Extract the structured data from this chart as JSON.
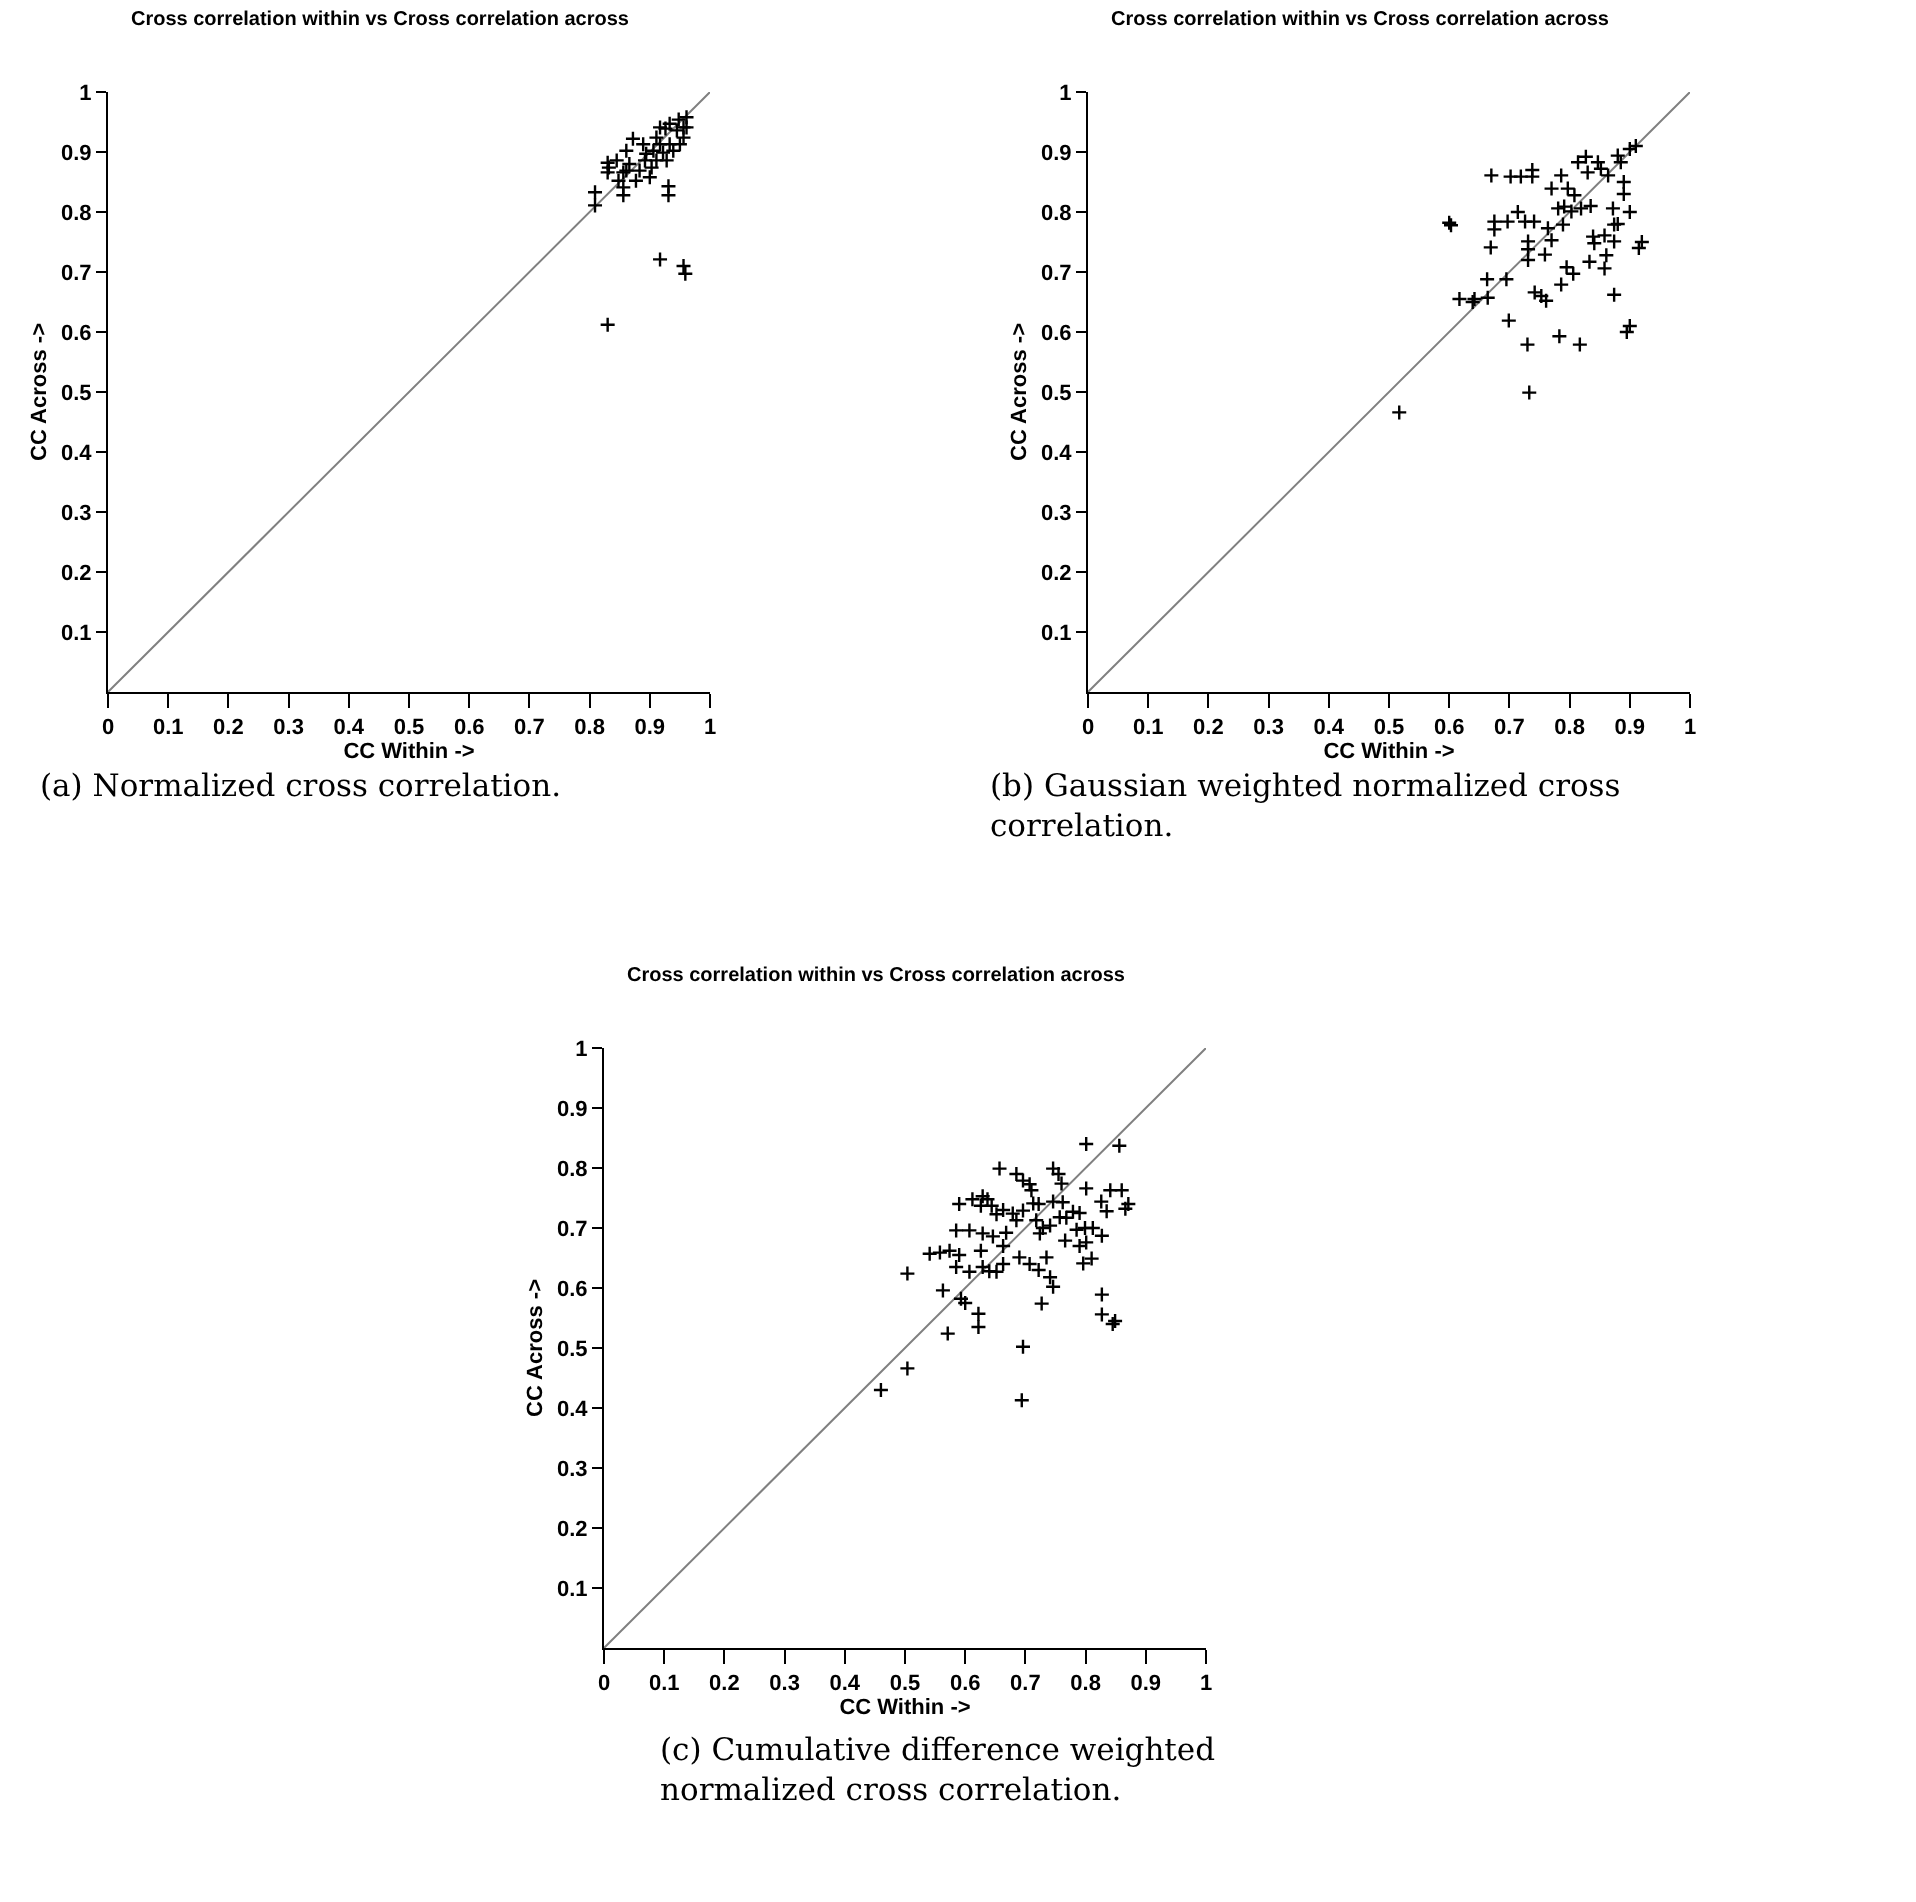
{
  "chart_data": [
    {
      "type": "scatter",
      "title": "Cross correlation within vs Cross correlation across",
      "xlabel": "CC Within ->",
      "ylabel": "CC Across ->",
      "xlim": [
        0,
        1
      ],
      "ylim": [
        0,
        1
      ],
      "xticks": [
        0,
        0.1,
        0.2,
        0.3,
        0.4,
        0.5,
        0.6,
        0.7,
        0.8,
        0.9,
        1
      ],
      "yticks": [
        0.1,
        0.2,
        0.3,
        0.4,
        0.5,
        0.6,
        0.7,
        0.8,
        0.9,
        1
      ],
      "grid": false,
      "marker": "cross",
      "annotations": [
        "(a) Normalized cross correlation."
      ],
      "series": [
        {
          "type": "scatter",
          "color": "#000000",
          "x": [
            0.809,
            0.809,
            0.83,
            0.83,
            0.832,
            0.856,
            0.856,
            0.856,
            0.83,
            0.917,
            0.956,
            0.959,
            0.931,
            0.931,
            0.861,
            0.872,
            0.889,
            0.892,
            0.9,
            0.903,
            0.911,
            0.917,
            0.926,
            0.933,
            0.948,
            0.961,
            0.956,
            0.956,
            0.939,
            0.928,
            0.877,
            0.866,
            0.883,
            0.906,
            0.945,
            0.961,
            0.894,
            0.845,
            0.933,
            0.917,
            0.911,
            0.95,
            0.922,
            0.861,
            0.848
          ],
          "values": [
            0.833,
            0.811,
            0.882,
            0.866,
            0.874,
            0.866,
            0.841,
            0.828,
            0.612,
            0.721,
            0.71,
            0.697,
            0.843,
            0.828,
            0.902,
            0.922,
            0.913,
            0.886,
            0.858,
            0.874,
            0.924,
            0.913,
            0.939,
            0.947,
            0.954,
            0.958,
            0.941,
            0.924,
            0.902,
            0.886,
            0.852,
            0.88,
            0.869,
            0.902,
            0.936,
            0.941,
            0.897,
            0.886,
            0.913,
            0.941,
            0.886,
            0.913,
            0.899,
            0.869,
            0.852
          ]
        },
        {
          "type": "line",
          "color": "#808080",
          "marker": "none",
          "x": [
            0,
            1
          ],
          "values": [
            0,
            1
          ]
        }
      ]
    },
    {
      "type": "scatter",
      "title": "Cross correlation within vs Cross correlation across",
      "xlabel": "CC Within ->",
      "ylabel": "CC Across ->",
      "xlim": [
        0,
        1
      ],
      "ylim": [
        0,
        1
      ],
      "xticks": [
        0,
        0.1,
        0.2,
        0.3,
        0.4,
        0.5,
        0.6,
        0.7,
        0.8,
        0.9,
        1
      ],
      "yticks": [
        0.1,
        0.2,
        0.3,
        0.4,
        0.5,
        0.6,
        0.7,
        0.8,
        0.9,
        1
      ],
      "grid": false,
      "marker": "cross",
      "annotations": [
        "(b) Gaussian weighted normalized cross correlation."
      ],
      "series": [
        {
          "type": "scatter",
          "color": "#000000",
          "x": [
            0.517,
            0.6,
            0.603,
            0.617,
            0.639,
            0.642,
            0.664,
            0.663,
            0.669,
            0.67,
            0.675,
            0.675,
            0.697,
            0.695,
            0.699,
            0.702,
            0.719,
            0.738,
            0.738,
            0.714,
            0.726,
            0.741,
            0.731,
            0.731,
            0.731,
            0.73,
            0.733,
            0.742,
            0.753,
            0.761,
            0.759,
            0.764,
            0.77,
            0.77,
            0.783,
            0.786,
            0.786,
            0.781,
            0.789,
            0.791,
            0.795,
            0.806,
            0.797,
            0.803,
            0.808,
            0.814,
            0.817,
            0.819,
            0.827,
            0.83,
            0.833,
            0.835,
            0.839,
            0.841,
            0.847,
            0.852,
            0.858,
            0.861,
            0.858,
            0.864,
            0.872,
            0.874,
            0.874,
            0.874,
            0.88,
            0.885,
            0.9,
            0.895,
            0.92,
            0.915,
            0.91,
            0.9,
            0.89,
            0.89,
            0.9,
            0.88
          ],
          "values": [
            0.466,
            0.782,
            0.778,
            0.655,
            0.65,
            0.655,
            0.657,
            0.688,
            0.741,
            0.861,
            0.784,
            0.771,
            0.784,
            0.688,
            0.619,
            0.859,
            0.859,
            0.87,
            0.859,
            0.8,
            0.784,
            0.784,
            0.751,
            0.738,
            0.72,
            0.579,
            0.499,
            0.666,
            0.66,
            0.652,
            0.729,
            0.773,
            0.839,
            0.753,
            0.593,
            0.861,
            0.679,
            0.806,
            0.779,
            0.809,
            0.708,
            0.697,
            0.839,
            0.801,
            0.828,
            0.883,
            0.579,
            0.806,
            0.892,
            0.866,
            0.717,
            0.81,
            0.759,
            0.748,
            0.883,
            0.872,
            0.706,
            0.728,
            0.761,
            0.861,
            0.806,
            0.779,
            0.751,
            0.662,
            0.894,
            0.883,
            0.61,
            0.6,
            0.75,
            0.74,
            0.91,
            0.905,
            0.85,
            0.83,
            0.8,
            0.78
          ]
        },
        {
          "type": "line",
          "color": "#808080",
          "marker": "none",
          "x": [
            0,
            1
          ],
          "values": [
            0,
            1
          ]
        }
      ]
    },
    {
      "type": "scatter",
      "title": "Cross correlation within vs Cross correlation across",
      "xlabel": "CC Within ->",
      "ylabel": "CC Across ->",
      "xlim": [
        0,
        1
      ],
      "ylim": [
        0,
        1
      ],
      "xticks": [
        0,
        0.1,
        0.2,
        0.3,
        0.4,
        0.5,
        0.6,
        0.7,
        0.8,
        0.9,
        1
      ],
      "yticks": [
        0.1,
        0.2,
        0.3,
        0.4,
        0.5,
        0.6,
        0.7,
        0.8,
        0.9,
        1
      ],
      "grid": false,
      "marker": "cross",
      "annotations": [
        "(c) Cumulative difference weighted normalized cross correlation."
      ],
      "series": [
        {
          "type": "scatter",
          "color": "#000000",
          "x": [
            0.46,
            0.504,
            0.504,
            0.571,
            0.563,
            0.59,
            0.541,
            0.558,
            0.574,
            0.59,
            0.585,
            0.607,
            0.629,
            0.626,
            0.585,
            0.593,
            0.6,
            0.622,
            0.622,
            0.612,
            0.629,
            0.637,
            0.657,
            0.626,
            0.644,
            0.652,
            0.663,
            0.607,
            0.629,
            0.64,
            0.652,
            0.663,
            0.646,
            0.663,
            0.668,
            0.679,
            0.685,
            0.696,
            0.685,
            0.696,
            0.707,
            0.71,
            0.713,
            0.722,
            0.718,
            0.724,
            0.729,
            0.69,
            0.707,
            0.722,
            0.741,
            0.746,
            0.727,
            0.696,
            0.694,
            0.735,
            0.746,
            0.755,
            0.76,
            0.746,
            0.762,
            0.741,
            0.757,
            0.766,
            0.768,
            0.779,
            0.79,
            0.801,
            0.801,
            0.785,
            0.799,
            0.812,
            0.79,
            0.801,
            0.796,
            0.81,
            0.827,
            0.826,
            0.835,
            0.841,
            0.86,
            0.866,
            0.871,
            0.856,
            0.827,
            0.827,
            0.845,
            0.849
          ],
          "values": [
            0.43,
            0.466,
            0.624,
            0.524,
            0.596,
            0.74,
            0.657,
            0.659,
            0.662,
            0.655,
            0.696,
            0.696,
            0.691,
            0.662,
            0.635,
            0.582,
            0.575,
            0.557,
            0.535,
            0.748,
            0.753,
            0.748,
            0.799,
            0.737,
            0.737,
            0.723,
            0.73,
            0.627,
            0.635,
            0.628,
            0.627,
            0.64,
            0.686,
            0.67,
            0.692,
            0.724,
            0.713,
            0.729,
            0.79,
            0.779,
            0.773,
            0.763,
            0.741,
            0.74,
            0.713,
            0.691,
            0.7,
            0.651,
            0.64,
            0.63,
            0.618,
            0.602,
            0.574,
            0.502,
            0.413,
            0.651,
            0.799,
            0.79,
            0.774,
            0.744,
            0.743,
            0.704,
            0.718,
            0.679,
            0.717,
            0.727,
            0.725,
            0.84,
            0.766,
            0.697,
            0.7,
            0.7,
            0.67,
            0.676,
            0.641,
            0.649,
            0.687,
            0.744,
            0.728,
            0.763,
            0.763,
            0.732,
            0.74,
            0.837,
            0.589,
            0.556,
            0.54,
            0.545
          ]
        },
        {
          "type": "line",
          "color": "#808080",
          "marker": "none",
          "x": [
            0,
            1
          ],
          "values": [
            0,
            1
          ]
        }
      ]
    }
  ]
}
